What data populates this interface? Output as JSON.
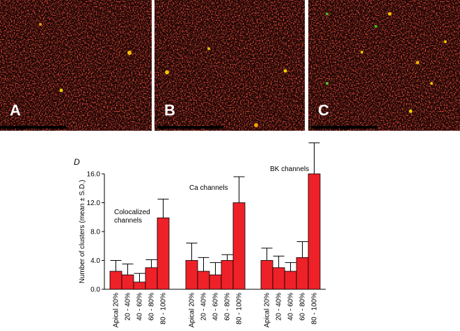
{
  "panel_labels": [
    "A",
    "B",
    "C"
  ],
  "chart_data": {
    "type": "bar",
    "panel_label": "D",
    "y_label": "Number of clusters (mean ± S.D.)",
    "categories": [
      "Apical 20%",
      "20 - 40%",
      "40 - 60%",
      "60 - 80%",
      "80 - 100%"
    ],
    "series": [
      {
        "name": "Colocalized channels",
        "color": "#ee2128",
        "values": [
          2.5,
          2.0,
          1.0,
          3.0,
          9.9
        ],
        "errors": [
          1.5,
          1.5,
          1.2,
          1.1,
          2.6
        ]
      },
      {
        "name": "Ca channels",
        "color": "#ee2128",
        "values": [
          4.0,
          2.5,
          2.0,
          4.0,
          12.0
        ],
        "errors": [
          2.4,
          1.9,
          1.7,
          0.8,
          3.6
        ]
      },
      {
        "name": "BK channels",
        "color": "#ee2128",
        "values": [
          4.0,
          3.0,
          2.5,
          4.4,
          16.0
        ],
        "errors": [
          1.7,
          1.6,
          1.2,
          2.2,
          4.3
        ]
      }
    ],
    "ylim": [
      0,
      16
    ],
    "yticks": [
      {
        "value": 0,
        "label": "0.0"
      },
      {
        "value": 4,
        "label": "4.0"
      },
      {
        "value": 8,
        "label": "8.0"
      },
      {
        "value": 12,
        "label": "12.0"
      },
      {
        "value": 16,
        "label": "16.0"
      }
    ]
  }
}
